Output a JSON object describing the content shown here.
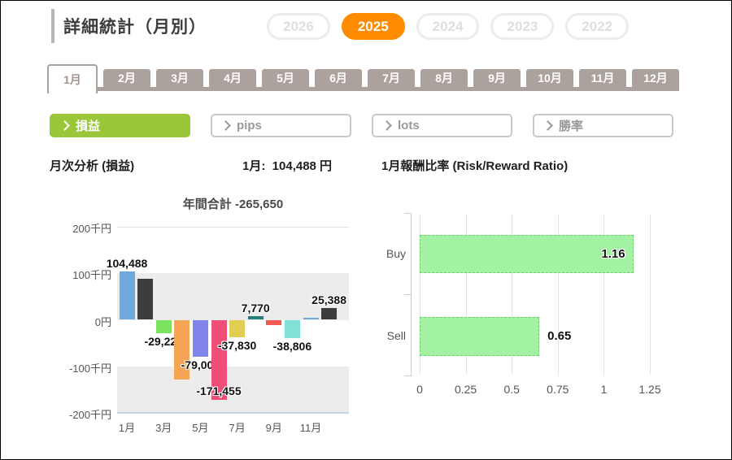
{
  "header": {
    "title": "詳細統計（月別）"
  },
  "year_tabs": [
    {
      "label": "2026",
      "name": "year-2026",
      "active": false
    },
    {
      "label": "2025",
      "name": "year-2025",
      "active": true
    },
    {
      "label": "2024",
      "name": "year-2024",
      "active": false
    },
    {
      "label": "2023",
      "name": "year-2023",
      "active": false
    },
    {
      "label": "2022",
      "name": "year-2022",
      "active": false
    }
  ],
  "month_tabs": [
    {
      "label": "1月",
      "name": "month-1",
      "active": true
    },
    {
      "label": "2月",
      "name": "month-2",
      "active": false
    },
    {
      "label": "3月",
      "name": "month-3",
      "active": false
    },
    {
      "label": "4月",
      "name": "month-4",
      "active": false
    },
    {
      "label": "5月",
      "name": "month-5",
      "active": false
    },
    {
      "label": "6月",
      "name": "month-6",
      "active": false
    },
    {
      "label": "7月",
      "name": "month-7",
      "active": false
    },
    {
      "label": "8月",
      "name": "month-8",
      "active": false
    },
    {
      "label": "9月",
      "name": "month-9",
      "active": false
    },
    {
      "label": "10月",
      "name": "month-10",
      "active": false
    },
    {
      "label": "11月",
      "name": "month-11",
      "active": false
    },
    {
      "label": "12月",
      "name": "month-12",
      "active": false
    }
  ],
  "metric_buttons": [
    {
      "label": "損益",
      "name": "profit-loss",
      "active": true
    },
    {
      "label": "pips",
      "name": "pips",
      "active": false
    },
    {
      "label": "lots",
      "name": "lots",
      "active": false
    },
    {
      "label": "勝率",
      "name": "win-rate",
      "active": false
    }
  ],
  "summary": {
    "monthly_analysis_label": "月次分析 (損益)",
    "month_value_text": "1月:  104,488 円"
  },
  "colors": {
    "accent_orange": "#FF8C00",
    "accent_green": "#99C739",
    "tab_taupe": "#ABA19D",
    "rr_bar_green": "#A3F2A3"
  },
  "chart_data": [
    {
      "type": "bar",
      "title": "年間合計 -265,650",
      "categories": [
        "1月",
        "2月",
        "3月",
        "4月",
        "5月",
        "6月",
        "7月",
        "8月",
        "9月",
        "10月",
        "11月",
        "12月"
      ],
      "values": [
        104488,
        89000,
        -29220,
        -129000,
        -79000,
        -171455,
        -37830,
        7770,
        -12000,
        -38806,
        5015,
        25388
      ],
      "data_labels": [
        "104,488",
        null,
        "-29,220",
        null,
        "-79,000",
        "-171,455",
        "-37,830",
        "7,770",
        null,
        "-38,806",
        null,
        "25,388"
      ],
      "bar_colors": [
        "#6FA8DC",
        "#3D3D3F",
        "#7CE35E",
        "#F6A455",
        "#8184E8",
        "#EE4E78",
        "#E2CE55",
        "#20827A",
        "#F05A52",
        "#80E2D6",
        "#6FA8DC",
        "#3D3D3F"
      ],
      "dotted_pattern_index": 8,
      "annual_total": -265650,
      "y_ticks": [
        "200千円",
        "100千円",
        "0円",
        "-100千円",
        "-200千円"
      ],
      "x_tick_labels": [
        "1月",
        "3月",
        "5月",
        "7月",
        "9月",
        "11月"
      ],
      "x_tick_indices": [
        0,
        2,
        4,
        6,
        8,
        10
      ],
      "ylim": [
        -200000,
        200000
      ],
      "grid": "alternating-bands",
      "unit": "円"
    },
    {
      "type": "bar_horizontal",
      "title": "1月報酬比率 (Risk/Reward Ratio)",
      "categories": [
        "Buy",
        "Sell"
      ],
      "values": [
        1.16,
        0.65
      ],
      "data_labels": [
        "1.16",
        "0.65"
      ],
      "x_ticks": [
        "0",
        "0.25",
        "0.5",
        "0.75",
        "1",
        "1.25"
      ],
      "xlim": [
        0,
        1.25
      ],
      "grid": "vertical",
      "bar_color": "#A3F2A3"
    }
  ]
}
